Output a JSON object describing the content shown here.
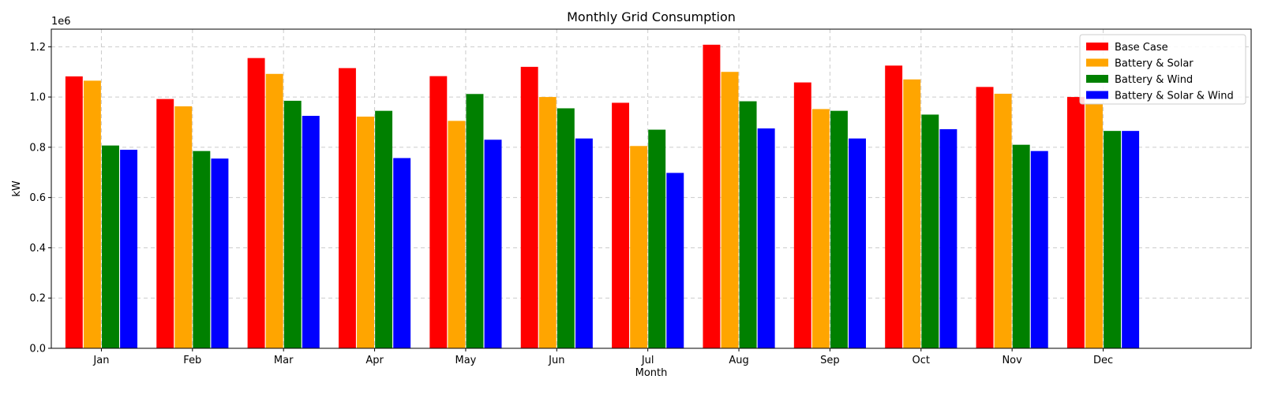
{
  "chart_data": {
    "type": "bar",
    "title": "Monthly Grid Consumption",
    "xlabel": "Month",
    "ylabel": "kW",
    "y_offset_text": "1e6",
    "categories": [
      "Jan",
      "Feb",
      "Mar",
      "Apr",
      "May",
      "Jun",
      "Jul",
      "Aug",
      "Sep",
      "Oct",
      "Nov",
      "Dec"
    ],
    "ylim": [
      0,
      1270000
    ],
    "yticks": [
      0,
      200000,
      400000,
      600000,
      800000,
      1000000,
      1200000
    ],
    "ytick_labels": [
      "0.0",
      "0.2",
      "0.4",
      "0.6",
      "0.8",
      "1.0",
      "1.2"
    ],
    "grid": true,
    "legend_position": "upper right",
    "series": [
      {
        "name": "Base Case",
        "color": "#ff0000",
        "values": [
          1082000,
          992000,
          1155000,
          1115000,
          1083000,
          1120000,
          977000,
          1208000,
          1058000,
          1125000,
          1040000,
          1000000
        ]
      },
      {
        "name": "Battery & Solar",
        "color": "#ffa500",
        "values": [
          1065000,
          963000,
          1092000,
          922000,
          905000,
          1000000,
          805000,
          1100000,
          952000,
          1070000,
          1013000,
          972000
        ]
      },
      {
        "name": "Battery & Wind",
        "color": "#008000",
        "values": [
          807000,
          785000,
          985000,
          945000,
          1012000,
          955000,
          870000,
          983000,
          945000,
          930000,
          810000,
          865000
        ]
      },
      {
        "name": "Battery & Solar & Wind",
        "color": "#0000ff",
        "values": [
          790000,
          755000,
          925000,
          757000,
          830000,
          835000,
          698000,
          875000,
          835000,
          872000,
          785000,
          865000
        ]
      }
    ]
  }
}
